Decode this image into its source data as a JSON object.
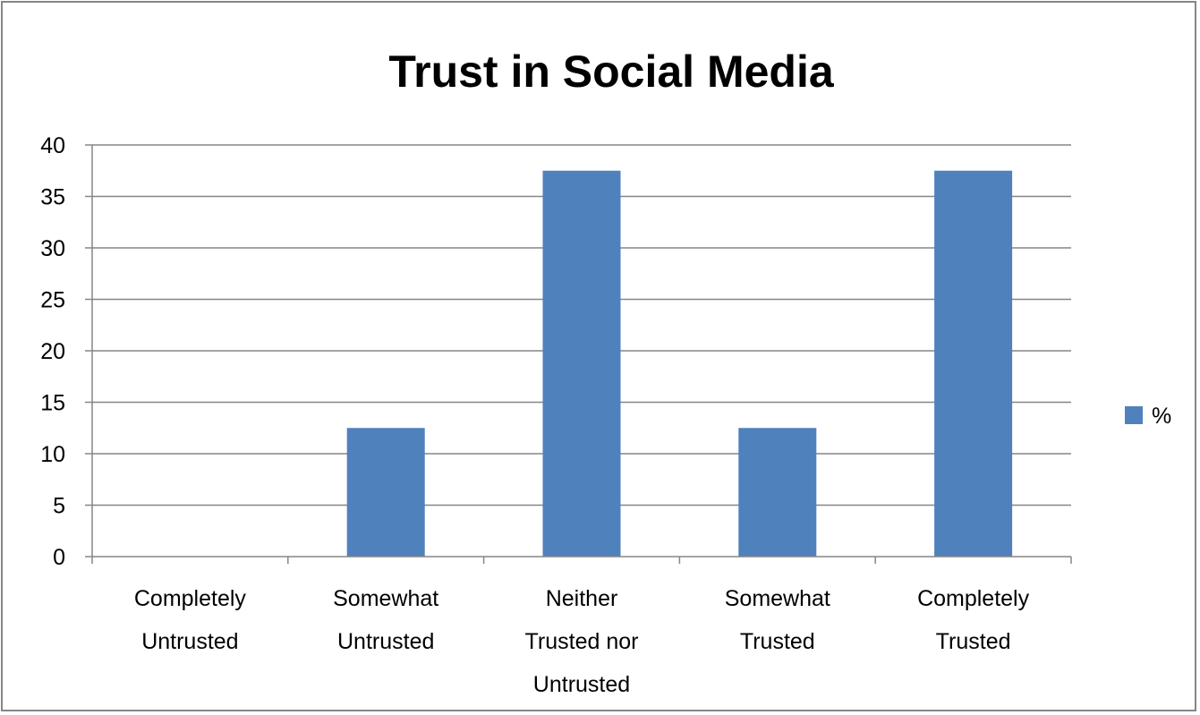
{
  "chart_data": {
    "type": "bar",
    "title": "Trust in Social Media",
    "xlabel": "",
    "ylabel": "",
    "categories": [
      [
        "Completely",
        "Untrusted"
      ],
      [
        "Somewhat",
        "Untrusted"
      ],
      [
        "Neither",
        "Trusted nor",
        "Untrusted"
      ],
      [
        "Somewhat",
        "Trusted"
      ],
      [
        "Completely",
        "Trusted"
      ]
    ],
    "series": [
      {
        "name": "%",
        "color": "#4f81bd",
        "values": [
          0,
          12.5,
          37.5,
          12.5,
          37.5
        ]
      }
    ],
    "ylim": [
      0,
      40
    ],
    "yticks": [
      0,
      5,
      10,
      15,
      20,
      25,
      30,
      35,
      40
    ],
    "grid": true,
    "legend": "right"
  }
}
